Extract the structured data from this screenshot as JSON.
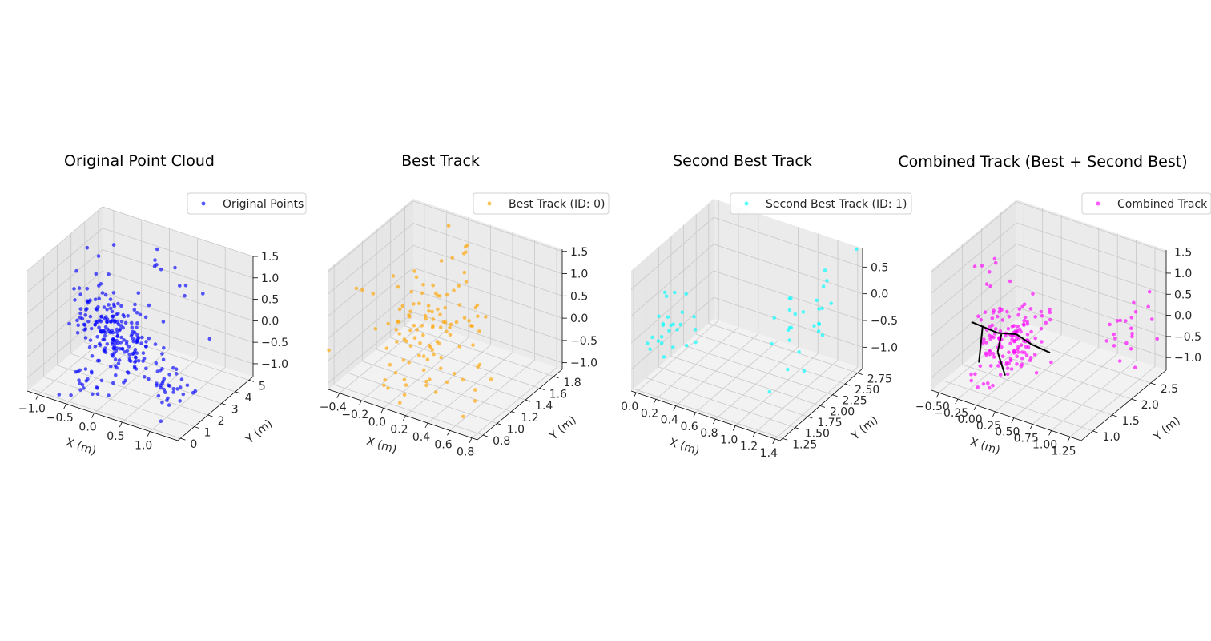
{
  "figure": {
    "background": "#ffffff"
  },
  "chart_data": [
    {
      "type": "scatter3d",
      "title": "Original Point Cloud",
      "xlabel": "X (m)",
      "ylabel": "Y (m)",
      "zlabel": "",
      "xlim": [
        -1.2,
        1.5
      ],
      "ylim": [
        -0.2,
        5.3
      ],
      "zlim": [
        -1.3,
        1.5
      ],
      "xticks": [
        "−1.0",
        "−0.5",
        "0.0",
        "0.5",
        "1.0"
      ],
      "yticks": [
        "0",
        "1",
        "2",
        "3",
        "4",
        "5"
      ],
      "zticks": [
        "−1.0",
        "−0.5",
        "0.0",
        "0.5",
        "1.0",
        "1.5"
      ],
      "grid": true,
      "legend": {
        "position": "top-right",
        "entries": [
          "Original Points"
        ]
      },
      "series": [
        {
          "name": "Original Points",
          "color": "#0000ff",
          "clusters": [
            {
              "center": [
                -0.2,
                2.2,
                -0.2
              ],
              "spread": [
                0.28,
                0.45,
                0.35
              ],
              "n": 170
            },
            {
              "center": [
                -0.8,
                3.0,
                0.1
              ],
              "spread": [
                0.15,
                0.6,
                0.5
              ],
              "n": 30
            },
            {
              "center": [
                0.9,
                1.8,
                -0.6
              ],
              "spread": [
                0.12,
                0.4,
                0.3
              ],
              "n": 25
            },
            {
              "center": [
                -0.4,
                0.8,
                -1.0
              ],
              "spread": [
                0.15,
                0.3,
                0.15
              ],
              "n": 20
            },
            {
              "center": [
                0.6,
                0.6,
                -0.6
              ],
              "spread": [
                0.35,
                0.4,
                0.4
              ],
              "n": 22
            },
            {
              "center": [
                0.2,
                4.0,
                0.5
              ],
              "spread": [
                0.6,
                0.8,
                0.5
              ],
              "n": 18
            }
          ]
        }
      ]
    },
    {
      "type": "scatter3d",
      "title": "Best Track",
      "xlabel": "X (m)",
      "ylabel": "Y (m)",
      "zlabel": "",
      "xlim": [
        -0.5,
        0.85
      ],
      "ylim": [
        0.72,
        1.92
      ],
      "zlim": [
        -1.15,
        1.55
      ],
      "xticks": [
        "−0.4",
        "−0.2",
        "0.0",
        "0.2",
        "0.4",
        "0.6",
        "0.8"
      ],
      "yticks": [
        "0.8",
        "1.0",
        "1.2",
        "1.4",
        "1.6",
        "1.8"
      ],
      "zticks": [
        "−1.0",
        "−0.5",
        "0.0",
        "0.5",
        "1.0",
        "1.5"
      ],
      "grid": true,
      "legend": {
        "position": "top-right",
        "entries": [
          "Best Track (ID: 0)"
        ]
      },
      "series": [
        {
          "name": "Best Track (ID: 0)",
          "color": "#ffa500",
          "clusters": [
            {
              "center": [
                0.05,
                1.3,
                0.0
              ],
              "spread": [
                0.2,
                0.25,
                0.45
              ],
              "n": 95
            },
            {
              "center": [
                -0.05,
                1.0,
                -1.0
              ],
              "spread": [
                0.12,
                0.08,
                0.12
              ],
              "n": 8
            },
            {
              "center": [
                0.55,
                1.1,
                -0.7
              ],
              "spread": [
                0.08,
                0.15,
                0.2
              ],
              "n": 8
            },
            {
              "center": [
                0.1,
                1.6,
                1.0
              ],
              "spread": [
                0.25,
                0.2,
                0.35
              ],
              "n": 8
            }
          ]
        }
      ]
    },
    {
      "type": "scatter3d",
      "title": "Second Best Track",
      "xlabel": "X (m)",
      "ylabel": "Y (m)",
      "zlabel": "",
      "xlim": [
        -0.05,
        1.45
      ],
      "ylim": [
        1.2,
        2.85
      ],
      "zlim": [
        -1.4,
        0.85
      ],
      "xticks": [
        "0.0",
        "0.2",
        "0.4",
        "0.6",
        "0.8",
        "1.0",
        "1.2",
        "1.4"
      ],
      "yticks": [
        "1.25",
        "1.50",
        "1.75",
        "2.00",
        "2.25",
        "2.50",
        "2.75"
      ],
      "zticks": [
        "−1.0",
        "−0.5",
        "0.0",
        "0.5"
      ],
      "grid": true,
      "legend": {
        "position": "top-right",
        "entries": [
          "Second Best Track (ID: 1)"
        ]
      },
      "series": [
        {
          "name": "Second Best Track (ID: 1)",
          "color": "#00ffff",
          "clusters": [
            {
              "center": [
                0.2,
                1.6,
                -0.3
              ],
              "spread": [
                0.12,
                0.2,
                0.35
              ],
              "n": 26
            },
            {
              "center": [
                1.2,
                2.2,
                -0.2
              ],
              "spread": [
                0.1,
                0.35,
                0.45
              ],
              "n": 28
            }
          ]
        }
      ]
    },
    {
      "type": "scatter3d",
      "title": "Combined Track (Best + Second Best)",
      "xlabel": "X (m)",
      "ylabel": "Y (m)",
      "zlabel": "",
      "xlim": [
        -0.6,
        1.4
      ],
      "ylim": [
        0.7,
        2.9
      ],
      "zlim": [
        -1.3,
        1.55
      ],
      "xticks": [
        "−0.50",
        "−0.25",
        "0.00",
        "0.25",
        "0.50",
        "0.75",
        "1.00",
        "1.25"
      ],
      "yticks": [
        "1.0",
        "1.5",
        "2.0",
        "2.5"
      ],
      "zticks": [
        "−1.0",
        "−0.5",
        "0.0",
        "0.5",
        "1.0",
        "1.5"
      ],
      "grid": true,
      "legend": {
        "position": "top-right",
        "entries": [
          "Combined Track"
        ]
      },
      "series": [
        {
          "name": "Combined Track",
          "color": "#ff00ff",
          "clusters": [
            {
              "center": [
                0.15,
                1.3,
                -0.1
              ],
              "spread": [
                0.2,
                0.25,
                0.35
              ],
              "n": 130
            },
            {
              "center": [
                -0.15,
                1.0,
                -1.0
              ],
              "spread": [
                0.08,
                0.08,
                0.1
              ],
              "n": 8
            },
            {
              "center": [
                1.2,
                2.3,
                -0.1
              ],
              "spread": [
                0.08,
                0.3,
                0.4
              ],
              "n": 22
            },
            {
              "center": [
                -0.3,
                1.7,
                0.9
              ],
              "spread": [
                0.15,
                0.2,
                0.3
              ],
              "n": 8
            }
          ]
        }
      ],
      "skeleton": {
        "color": "#000000",
        "segments": [
          [
            [
              -0.35,
              1.25,
              0.05
            ],
            [
              0.0,
              1.25,
              0.0
            ]
          ],
          [
            [
              0.0,
              1.25,
              0.0
            ],
            [
              0.25,
              1.25,
              0.12
            ]
          ],
          [
            [
              0.25,
              1.25,
              0.12
            ],
            [
              0.45,
              1.25,
              0.0
            ]
          ],
          [
            [
              0.45,
              1.25,
              0.0
            ],
            [
              0.7,
              1.25,
              -0.05
            ]
          ],
          [
            [
              -0.2,
              1.25,
              0.05
            ],
            [
              -0.25,
              1.25,
              -0.85
            ]
          ],
          [
            [
              0.05,
              1.25,
              0.0
            ],
            [
              0.0,
              1.25,
              -0.45
            ]
          ],
          [
            [
              0.0,
              1.25,
              -0.45
            ],
            [
              0.1,
              1.25,
              -0.95
            ]
          ]
        ]
      }
    }
  ]
}
